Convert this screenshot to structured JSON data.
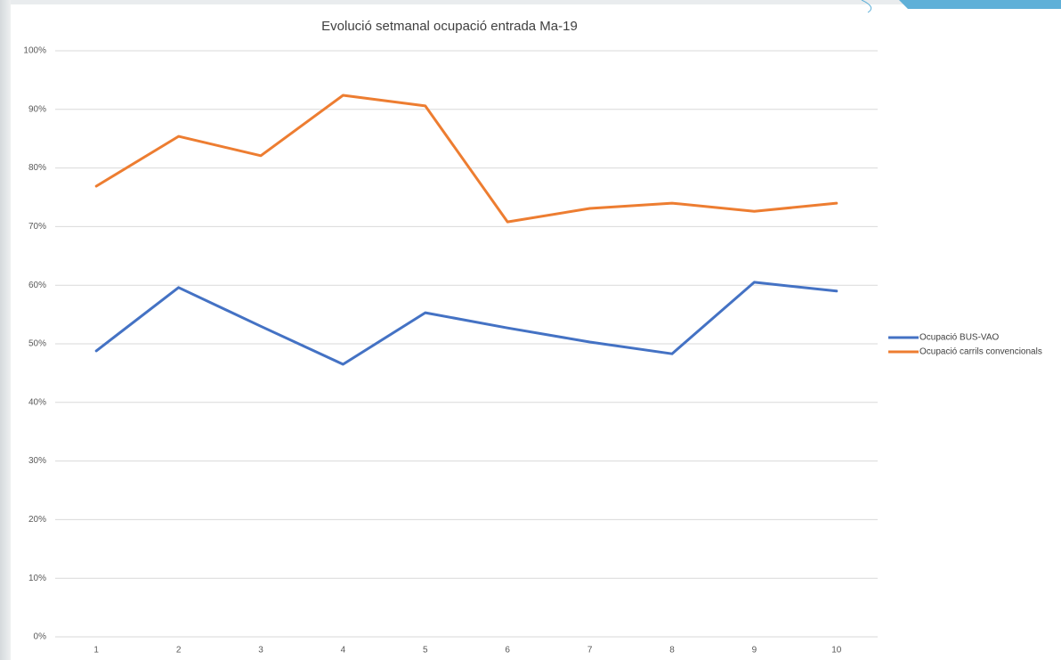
{
  "chart_data": {
    "type": "line",
    "title": "Evolució setmanal ocupació entrada Ma-19",
    "categories": [
      "1",
      "2",
      "3",
      "4",
      "5",
      "6",
      "7",
      "8",
      "9",
      "10"
    ],
    "series": [
      {
        "name": "Ocupació BUS-VAO",
        "color": "#4472c4",
        "values": [
          48.8,
          59.6,
          53,
          46.5,
          55.3,
          52.7,
          50.3,
          48.3,
          60.5,
          59.0
        ]
      },
      {
        "name": "Ocupació carrils convencionals",
        "color": "#ed7d31",
        "values": [
          76.9,
          85.4,
          82.1,
          92.4,
          90.6,
          70.8,
          73.1,
          74.0,
          72.6,
          74.0
        ]
      }
    ],
    "ylim": [
      0,
      100
    ],
    "yticks": [
      {
        "value": 0,
        "label": "0%"
      },
      {
        "value": 10,
        "label": "10%"
      },
      {
        "value": 20,
        "label": "20%"
      },
      {
        "value": 30,
        "label": "30%"
      },
      {
        "value": 40,
        "label": "40%"
      },
      {
        "value": 50,
        "label": "50%"
      },
      {
        "value": 60,
        "label": "60%"
      },
      {
        "value": 70,
        "label": "70%"
      },
      {
        "value": 80,
        "label": "80%"
      },
      {
        "value": 90,
        "label": "90%"
      },
      {
        "value": 100,
        "label": "100%"
      }
    ],
    "grid": true,
    "legend": "right"
  }
}
